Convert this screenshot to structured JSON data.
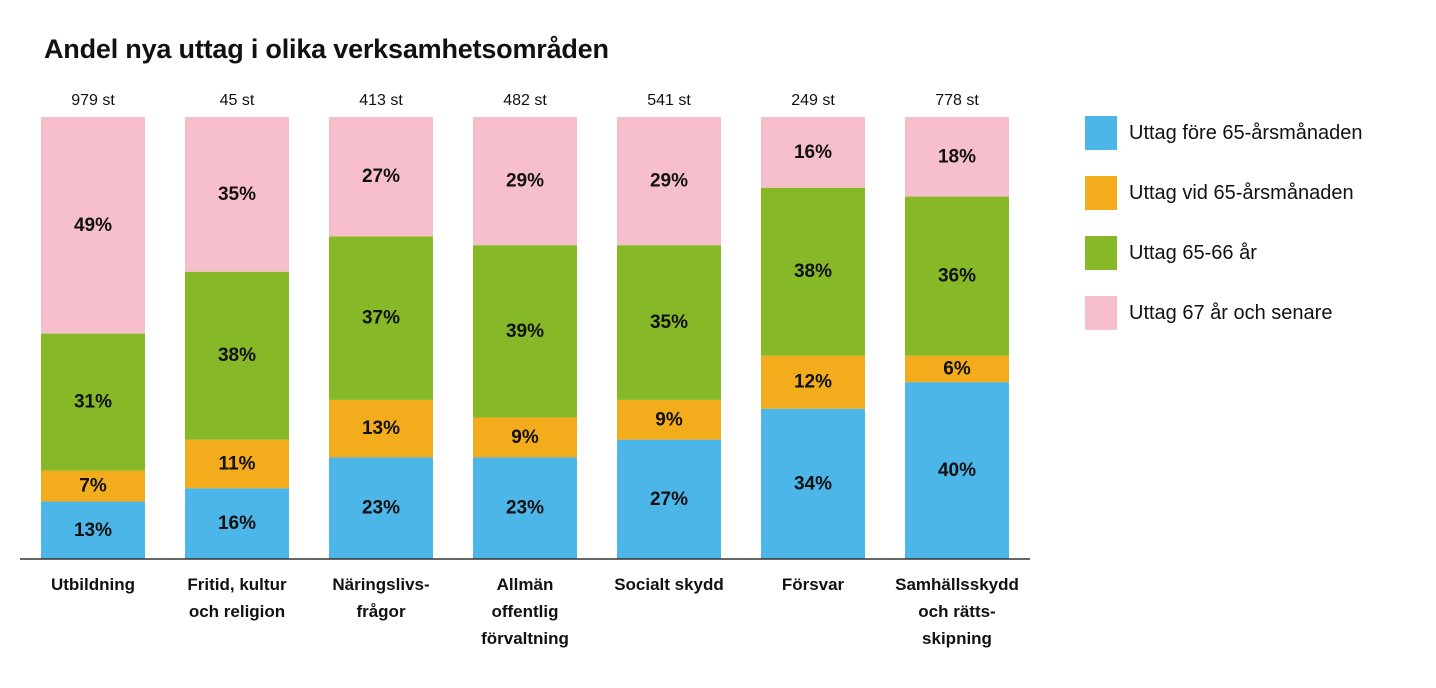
{
  "chart_data": {
    "type": "bar",
    "stacked": true,
    "title": "Andel nya uttag i olika verksamhetsområden",
    "unit": "%",
    "categories": [
      [
        "Utbildning"
      ],
      [
        "Fritid, kultur",
        "och religion"
      ],
      [
        "Näringslivs-",
        "frågor"
      ],
      [
        "Allmän",
        "offentlig",
        "förvaltning"
      ],
      [
        "Socialt skydd"
      ],
      [
        "Försvar"
      ],
      [
        "Samhällsskydd",
        "och rätts-",
        "skipning"
      ]
    ],
    "counts": [
      "979 st",
      "45 st",
      "413 st",
      "482 st",
      "541 st",
      "249 st",
      "778 st"
    ],
    "series": [
      {
        "name": "Uttag före 65-årsmånaden",
        "color": "#4db6e8",
        "values": [
          13,
          16,
          23,
          23,
          27,
          34,
          40
        ]
      },
      {
        "name": "Uttag vid 65-årsmånaden",
        "color": "#f2ac1c",
        "values": [
          7,
          11,
          13,
          9,
          9,
          12,
          6
        ]
      },
      {
        "name": "Uttag 65-66 år",
        "color": "#86b828",
        "values": [
          31,
          38,
          37,
          39,
          35,
          38,
          36
        ]
      },
      {
        "name": "Uttag 67 år och senare",
        "color": "#f7bfcb",
        "values": [
          49,
          35,
          27,
          29,
          29,
          16,
          18
        ]
      }
    ],
    "ylim": [
      0,
      100
    ],
    "legend_position": "right",
    "grid": false
  }
}
